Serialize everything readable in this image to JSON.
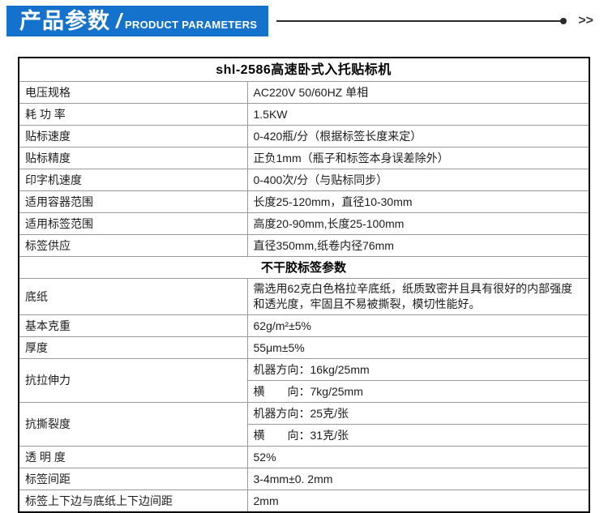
{
  "header": {
    "banner": {
      "cn": "产品参数",
      "slash": "/",
      "en": "PRODUCT PARAMETERS",
      "bg_color": "#1472cd",
      "text_color": "#ffffff"
    },
    "rule_color": "#2b2b2b",
    "arrows": ">>"
  },
  "table": {
    "rows": [
      {
        "type": "title",
        "text": "shl-2586高速卧式入托贴标机"
      },
      {
        "type": "param",
        "label": "电压规格",
        "value": "AC220V 50/60HZ  单相"
      },
      {
        "type": "param",
        "label": "耗 功 率",
        "value": "1.5KW"
      },
      {
        "type": "param",
        "label": "贴标速度",
        "value": "0-420瓶/分（根据标签长度来定）"
      },
      {
        "type": "param",
        "label": "贴标精度",
        "value": "正负1mm（瓶子和标签本身误差除外）"
      },
      {
        "type": "param",
        "label": "印字机速度",
        "value": "0-400次/分（与贴标同步）"
      },
      {
        "type": "param",
        "label": "适用容器范围",
        "value": "长度25-120mm，直径10-30mm"
      },
      {
        "type": "param",
        "label": "适用标签范围",
        "value": "高度20-90mm,长度25-100mm"
      },
      {
        "type": "param",
        "label": "标签供应",
        "value": "直径350mm,纸卷内径76mm"
      },
      {
        "type": "section",
        "text": "不干胶标签参数"
      },
      {
        "type": "param",
        "label": "底纸",
        "value": "需选用62克白色格拉辛底纸，纸质致密并且具有很好的内部强度和透光度，牢固且不易被撕裂，模切性能好。"
      },
      {
        "type": "param",
        "label": "基本克重",
        "value": "62g/m²±5%"
      },
      {
        "type": "param",
        "label": "厚度",
        "value": "55μm±5%"
      },
      {
        "type": "param2",
        "label": "抗拉伸力",
        "values": [
          "机器方向：16kg/25mm",
          "横　　向：7kg/25mm"
        ]
      },
      {
        "type": "param2",
        "label": "抗撕裂度",
        "values": [
          "机器方向：25克/张",
          "横　　向：31克/张"
        ]
      },
      {
        "type": "param",
        "label": "透 明 度",
        "value": "52%"
      },
      {
        "type": "param",
        "label": "标签间距",
        "value": "3-4mm±0. 2mm"
      },
      {
        "type": "param",
        "label": "标签上下边与底纸上下边间距",
        "value": "2mm"
      }
    ]
  }
}
